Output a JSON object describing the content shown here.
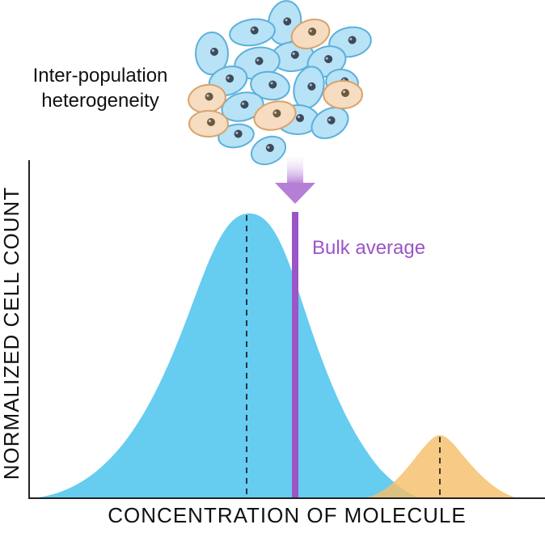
{
  "annotation": "Inter-population heterogeneity",
  "bulk_label": "Bulk average",
  "xlabel": "CONCENTRATION OF MOLECULE",
  "ylabel": "NORMALIZED CELL COUNT",
  "colors": {
    "major_population": "#66ccf0",
    "minor_population": "#f5c06a",
    "bulk_line": "#9b55c6",
    "cell_blue_fill": "#b8e2f6",
    "cell_blue_stroke": "#5cb0dc",
    "cell_orange_fill": "#f6dcc0",
    "cell_orange_stroke": "#d9a36c",
    "nucleus": "#3c4a5c"
  }
}
